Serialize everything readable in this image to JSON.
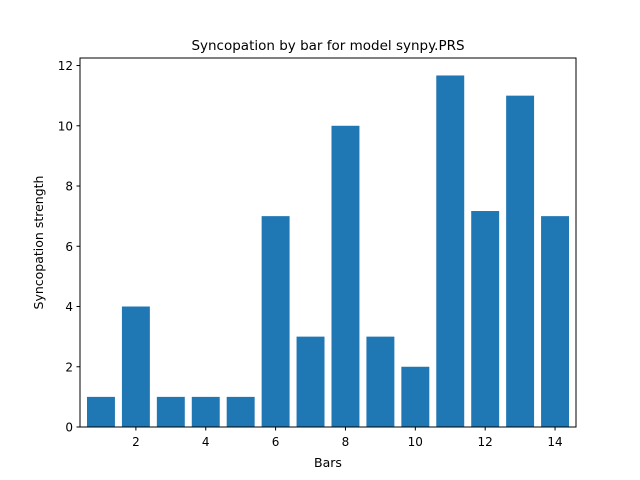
{
  "chart_data": {
    "type": "bar",
    "title": "Syncopation by bar for model synpy.PRS",
    "xlabel": "Bars",
    "ylabel": "Syncopation strength",
    "x": [
      1,
      2,
      3,
      4,
      5,
      6,
      7,
      8,
      9,
      10,
      11,
      12,
      13,
      14
    ],
    "values": [
      1,
      4,
      1,
      1,
      1,
      7,
      3,
      10,
      3,
      2,
      11.67,
      7.17,
      11,
      7
    ],
    "xlim": [
      0.4,
      14.6
    ],
    "ylim": [
      0,
      12.25
    ],
    "xticks": [
      2,
      4,
      6,
      8,
      10,
      12,
      14
    ],
    "yticks": [
      0,
      2,
      4,
      6,
      8,
      10,
      12
    ],
    "bar_color": "#1f77b4",
    "grid": false,
    "legend": "none"
  }
}
